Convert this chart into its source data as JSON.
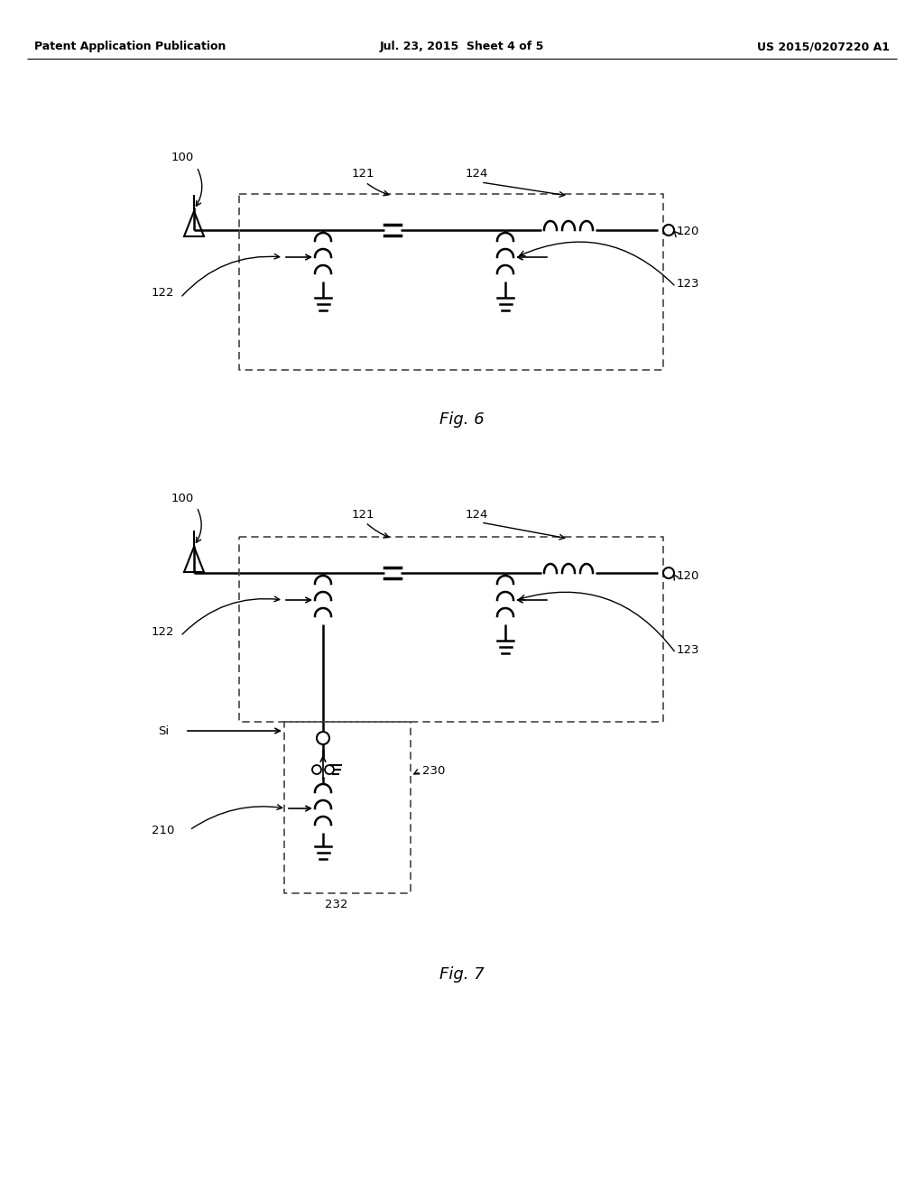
{
  "bg_color": "#ffffff",
  "text_color": "#000000",
  "line_color": "#000000",
  "dashed_color": "#444444",
  "header_left": "Patent Application Publication",
  "header_mid": "Jul. 23, 2015  Sheet 4 of 5",
  "header_right": "US 2015/0207220 A1",
  "fig6_label": "Fig. 6",
  "fig7_label": "Fig. 7"
}
